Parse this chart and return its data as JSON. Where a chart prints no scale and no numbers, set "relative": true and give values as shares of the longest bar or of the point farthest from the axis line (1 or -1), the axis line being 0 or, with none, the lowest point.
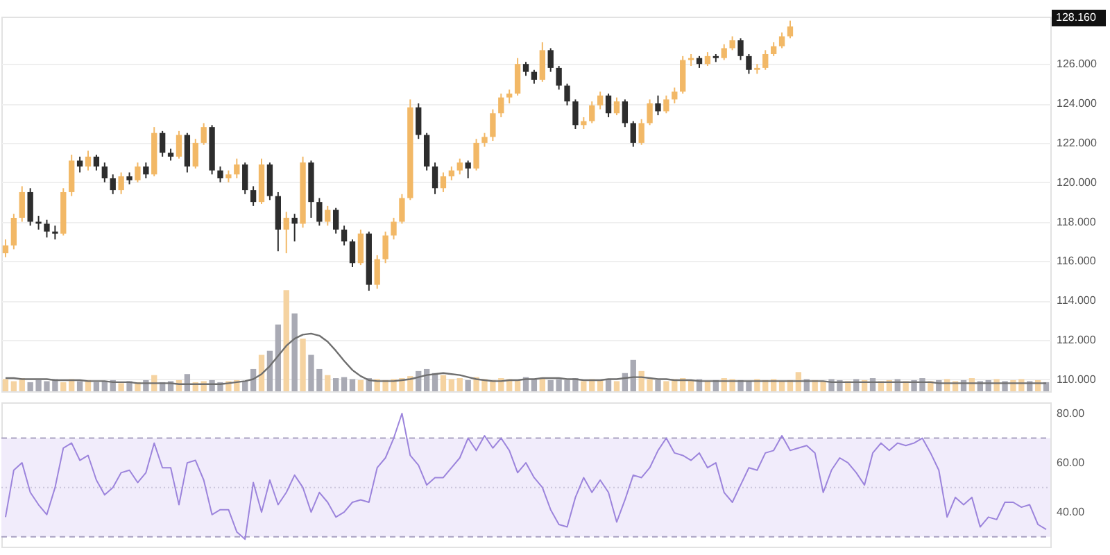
{
  "chart_data": [
    {
      "type": "candlestick",
      "tick_labels": "y",
      "grid": "y",
      "categories": [
        null,
        null,
        null,
        null,
        null,
        null,
        null,
        null,
        null,
        null,
        null,
        null,
        null,
        null,
        null,
        null,
        null,
        null,
        null,
        null,
        null,
        null,
        null,
        null,
        null,
        null,
        null,
        null,
        null,
        null,
        null,
        null,
        null,
        null,
        null,
        null,
        null,
        null,
        null,
        null,
        null,
        null,
        null,
        null,
        null,
        null,
        null,
        null,
        null,
        null,
        null,
        null,
        null,
        null,
        null,
        null,
        null,
        null,
        null,
        null,
        null,
        null,
        null,
        null,
        null,
        null,
        null,
        null,
        null,
        null,
        null,
        null,
        null,
        null,
        null,
        null,
        null,
        null,
        null,
        null,
        null,
        null,
        null,
        null,
        null,
        null,
        null,
        null,
        null,
        null,
        null,
        null,
        null,
        null,
        null,
        null,
        null,
        null,
        null,
        null,
        null,
        null,
        null,
        null,
        null,
        null,
        null,
        null,
        null,
        null,
        null,
        null,
        null,
        null,
        null,
        null,
        null,
        null,
        null,
        null,
        null,
        null,
        null,
        null,
        null,
        null,
        null
      ],
      "ohlc": [
        [
          116.4,
          117.1,
          116.2,
          116.8
        ],
        [
          116.8,
          118.4,
          116.6,
          118.2
        ],
        [
          118.2,
          119.8,
          118.0,
          119.5
        ],
        [
          119.5,
          119.7,
          117.8,
          118.0
        ],
        [
          118.0,
          118.3,
          117.6,
          117.9
        ],
        [
          117.9,
          118.1,
          117.2,
          117.5
        ],
        [
          117.5,
          117.8,
          117.1,
          117.4
        ],
        [
          117.4,
          119.7,
          117.3,
          119.5
        ],
        [
          119.5,
          121.4,
          119.3,
          121.1
        ],
        [
          121.1,
          121.3,
          120.5,
          120.8
        ],
        [
          120.8,
          121.6,
          120.6,
          121.3
        ],
        [
          121.3,
          121.4,
          120.6,
          120.8
        ],
        [
          120.8,
          121.0,
          120.0,
          120.2
        ],
        [
          120.2,
          120.4,
          119.4,
          119.6
        ],
        [
          119.6,
          120.5,
          119.4,
          120.3
        ],
        [
          120.3,
          120.5,
          119.9,
          120.1
        ],
        [
          120.1,
          121.0,
          120.0,
          120.8
        ],
        [
          120.8,
          121.0,
          120.2,
          120.4
        ],
        [
          120.4,
          122.8,
          120.3,
          122.5
        ],
        [
          122.5,
          122.6,
          121.3,
          121.5
        ],
        [
          121.5,
          121.7,
          121.1,
          121.3
        ],
        [
          121.3,
          122.6,
          121.2,
          122.4
        ],
        [
          122.4,
          122.5,
          120.5,
          120.8
        ],
        [
          120.8,
          122.2,
          120.7,
          122.0
        ],
        [
          122.0,
          123.0,
          121.9,
          122.8
        ],
        [
          122.8,
          122.9,
          120.4,
          120.6
        ],
        [
          120.6,
          120.8,
          120.0,
          120.2
        ],
        [
          120.2,
          120.6,
          120.0,
          120.4
        ],
        [
          120.4,
          121.2,
          120.2,
          120.9
        ],
        [
          120.9,
          121.0,
          119.4,
          119.6
        ],
        [
          119.6,
          119.8,
          118.8,
          119.0
        ],
        [
          119.0,
          121.2,
          118.9,
          120.9
        ],
        [
          120.9,
          121.0,
          119.1,
          119.3
        ],
        [
          119.3,
          119.5,
          116.5,
          117.6
        ],
        [
          117.6,
          118.5,
          116.4,
          118.2
        ],
        [
          118.2,
          118.4,
          117.0,
          117.9
        ],
        [
          117.9,
          121.3,
          117.7,
          121.0
        ],
        [
          121.0,
          121.1,
          118.2,
          119.0
        ],
        [
          119.0,
          119.2,
          117.8,
          118.0
        ],
        [
          118.0,
          118.8,
          117.8,
          118.6
        ],
        [
          118.6,
          118.7,
          117.4,
          117.6
        ],
        [
          117.6,
          117.8,
          116.8,
          117.0
        ],
        [
          117.0,
          117.1,
          115.7,
          115.9
        ],
        [
          115.9,
          117.6,
          115.8,
          117.4
        ],
        [
          117.4,
          117.5,
          114.5,
          114.8
        ],
        [
          114.8,
          116.3,
          114.6,
          116.1
        ],
        [
          116.1,
          117.5,
          115.9,
          117.3
        ],
        [
          117.3,
          118.2,
          117.1,
          118.0
        ],
        [
          118.0,
          119.4,
          117.9,
          119.2
        ],
        [
          119.2,
          124.2,
          119.1,
          123.8
        ],
        [
          123.8,
          124.0,
          122.2,
          122.4
        ],
        [
          122.4,
          122.5,
          120.6,
          120.8
        ],
        [
          120.8,
          121.0,
          119.4,
          119.7
        ],
        [
          119.7,
          120.5,
          119.5,
          120.3
        ],
        [
          120.3,
          120.8,
          120.1,
          120.6
        ],
        [
          120.6,
          121.2,
          120.4,
          121.0
        ],
        [
          121.0,
          121.1,
          120.2,
          120.7
        ],
        [
          120.7,
          122.2,
          120.6,
          122.0
        ],
        [
          122.0,
          122.5,
          121.8,
          122.3
        ],
        [
          122.3,
          123.7,
          122.1,
          123.5
        ],
        [
          123.5,
          124.5,
          123.3,
          124.3
        ],
        [
          124.3,
          124.7,
          124.0,
          124.5
        ],
        [
          124.5,
          126.3,
          124.4,
          126.0
        ],
        [
          126.0,
          126.1,
          125.4,
          125.6
        ],
        [
          125.6,
          125.7,
          125.0,
          125.2
        ],
        [
          125.2,
          127.1,
          125.1,
          126.7
        ],
        [
          126.7,
          126.8,
          125.6,
          125.8
        ],
        [
          125.8,
          125.9,
          124.7,
          124.9
        ],
        [
          124.9,
          125.0,
          123.9,
          124.1
        ],
        [
          124.1,
          124.2,
          122.7,
          122.9
        ],
        [
          122.9,
          123.3,
          122.7,
          123.1
        ],
        [
          123.1,
          124.1,
          123.0,
          123.9
        ],
        [
          123.9,
          124.6,
          123.7,
          124.4
        ],
        [
          124.4,
          124.5,
          123.3,
          123.5
        ],
        [
          123.5,
          124.3,
          123.4,
          124.1
        ],
        [
          124.1,
          124.2,
          122.8,
          123.0
        ],
        [
          123.0,
          123.1,
          121.8,
          122.0
        ],
        [
          122.0,
          123.2,
          121.9,
          123.0
        ],
        [
          123.0,
          124.2,
          122.9,
          124.0
        ],
        [
          124.0,
          124.4,
          123.4,
          123.6
        ],
        [
          123.6,
          124.4,
          123.5,
          124.2
        ],
        [
          124.2,
          124.8,
          124.0,
          124.6
        ],
        [
          124.6,
          126.4,
          124.5,
          126.2
        ],
        [
          126.2,
          126.5,
          125.9,
          126.3
        ],
        [
          126.3,
          126.4,
          125.8,
          126.0
        ],
        [
          126.0,
          126.6,
          125.9,
          126.4
        ],
        [
          126.4,
          126.5,
          126.1,
          126.3
        ],
        [
          126.3,
          127.0,
          126.2,
          126.8
        ],
        [
          126.8,
          127.4,
          126.7,
          127.2
        ],
        [
          127.2,
          127.3,
          126.2,
          126.4
        ],
        [
          126.4,
          126.5,
          125.5,
          125.7
        ],
        [
          125.7,
          126.0,
          125.5,
          125.8
        ],
        [
          125.8,
          126.7,
          125.7,
          126.5
        ],
        [
          126.5,
          127.1,
          126.4,
          126.9
        ],
        [
          126.9,
          127.6,
          126.8,
          127.4
        ],
        [
          127.4,
          128.2,
          127.3,
          127.9
        ],
        null,
        null,
        null,
        null,
        null,
        null,
        null,
        null,
        null,
        null,
        null,
        null,
        null,
        null,
        null,
        null,
        null,
        null,
        null,
        null,
        null,
        null,
        null,
        null,
        null,
        null,
        null,
        null,
        null,
        null,
        null
      ],
      "colors": [
        "#f2b866",
        "#f2b866",
        "#f2b866",
        "#2d2d2d",
        "#2d2d2d",
        "#2d2d2d",
        "#2d2d2d",
        "#f2b866",
        "#f2b866",
        "#2d2d2d",
        "#f2b866",
        "#2d2d2d",
        "#2d2d2d",
        "#2d2d2d",
        "#f2b866",
        "#2d2d2d",
        "#f2b866",
        "#2d2d2d",
        "#f2b866",
        "#2d2d2d",
        "#2d2d2d",
        "#f2b866",
        "#2d2d2d",
        "#f2b866",
        "#f2b866",
        "#2d2d2d",
        "#2d2d2d",
        "#f2b866",
        "#f2b866",
        "#2d2d2d",
        "#2d2d2d",
        "#f2b866",
        "#2d2d2d",
        "#2d2d2d",
        "#f2b866",
        "#2d2d2d",
        "#f2b866",
        "#2d2d2d",
        "#2d2d2d",
        "#f2b866",
        "#2d2d2d",
        "#2d2d2d",
        "#2d2d2d",
        "#f2b866",
        "#2d2d2d",
        "#f2b866",
        "#f2b866",
        "#f2b866",
        "#f2b866",
        "#f2b866",
        "#2d2d2d",
        "#2d2d2d",
        "#2d2d2d",
        "#f2b866",
        "#f2b866",
        "#f2b866",
        "#2d2d2d",
        "#f2b866",
        "#f2b866",
        "#f2b866",
        "#f2b866",
        "#f2b866",
        "#f2b866",
        "#2d2d2d",
        "#2d2d2d",
        "#f2b866",
        "#2d2d2d",
        "#2d2d2d",
        "#2d2d2d",
        "#2d2d2d",
        "#f2b866",
        "#f2b866",
        "#f2b866",
        "#2d2d2d",
        "#f2b866",
        "#2d2d2d",
        "#2d2d2d",
        "#f2b866",
        "#f2b866",
        "#2d2d2d",
        "#f2b866",
        "#f2b866",
        "#f2b866",
        "#f2b866",
        "#2d2d2d",
        "#f2b866",
        "#2d2d2d",
        "#f2b866",
        "#f2b866",
        "#2d2d2d",
        "#2d2d2d",
        "#f2b866",
        "#f2b866",
        "#f2b866",
        "#f2b866",
        "#f2b866",
        null,
        null,
        null,
        null,
        null,
        null,
        null,
        null,
        null,
        null,
        null,
        null,
        null,
        null,
        null,
        null,
        null,
        null,
        null,
        null,
        null,
        null,
        null,
        null,
        null,
        null,
        null,
        null,
        null,
        null,
        null
      ],
      "ylim": [
        109.4,
        128.4
      ],
      "yticks": [
        {
          "value": 110,
          "label": "110.000"
        },
        {
          "value": 112,
          "label": "112.000"
        },
        {
          "value": 114,
          "label": "114.000"
        },
        {
          "value": 116,
          "label": "116.000"
        },
        {
          "value": 118,
          "label": "118.000"
        },
        {
          "value": 120,
          "label": "120.000"
        },
        {
          "value": 122,
          "label": "122.000"
        },
        {
          "value": 124,
          "label": "124.000"
        },
        {
          "value": 126,
          "label": "126.000"
        }
      ],
      "annotations": [
        "128.160"
      ]
    },
    {
      "type": "bar",
      "relative": true,
      "tick_labels": false,
      "categories": [
        null,
        null,
        null,
        null,
        null,
        null,
        null,
        null,
        null,
        null,
        null,
        null,
        null,
        null,
        null,
        null,
        null,
        null,
        null,
        null,
        null,
        null,
        null,
        null,
        null,
        null,
        null,
        null,
        null,
        null,
        null,
        null,
        null,
        null,
        null,
        null,
        null,
        null,
        null,
        null,
        null,
        null,
        null,
        null,
        null,
        null,
        null,
        null,
        null,
        null,
        null,
        null,
        null,
        null,
        null,
        null,
        null,
        null,
        null,
        null,
        null,
        null,
        null,
        null,
        null,
        null,
        null,
        null,
        null,
        null,
        null,
        null,
        null,
        null,
        null,
        null,
        null,
        null,
        null,
        null,
        null,
        null,
        null,
        null,
        null,
        null,
        null,
        null,
        null,
        null,
        null,
        null,
        null,
        null,
        null,
        null,
        null,
        null,
        null,
        null,
        null,
        null,
        null,
        null,
        null,
        null,
        null,
        null,
        null,
        null,
        null,
        null,
        null,
        null,
        null,
        null,
        null,
        null,
        null,
        null,
        null,
        null,
        null,
        null,
        null,
        null,
        null
      ],
      "series": [
        {
          "type": "bar",
          "values": [
            0.12,
            0.1,
            0.13,
            0.09,
            0.11,
            0.1,
            0.12,
            0.09,
            0.12,
            0.1,
            0.11,
            0.09,
            0.1,
            0.11,
            0.08,
            0.1,
            0.09,
            0.11,
            0.16,
            0.09,
            0.1,
            0.11,
            0.17,
            0.09,
            0.1,
            0.11,
            0.09,
            0.1,
            0.11,
            0.1,
            0.22,
            0.36,
            0.4,
            0.66,
            1.0,
            0.77,
            0.52,
            0.36,
            0.22,
            0.16,
            0.13,
            0.14,
            0.12,
            0.11,
            0.13,
            0.12,
            0.11,
            0.12,
            0.13,
            0.15,
            0.2,
            0.22,
            0.18,
            0.16,
            0.12,
            0.13,
            0.11,
            0.14,
            0.12,
            0.11,
            0.13,
            0.12,
            0.11,
            0.14,
            0.12,
            0.13,
            0.11,
            0.12,
            0.11,
            0.13,
            0.1,
            0.12,
            0.11,
            0.12,
            0.1,
            0.18,
            0.31,
            0.2,
            0.12,
            0.11,
            0.1,
            0.12,
            0.13,
            0.11,
            0.12,
            0.1,
            0.11,
            0.13,
            0.12,
            0.11,
            0.1,
            0.12,
            0.11,
            0.12,
            0.1,
            0.11,
            0.19,
            0.12,
            0.11,
            0.1,
            0.12,
            0.11,
            0.1,
            0.12,
            0.11,
            0.13,
            0.1,
            0.11,
            0.12,
            0.1,
            0.11,
            0.13,
            0.1,
            0.11,
            0.12,
            0.1,
            0.11,
            0.13,
            0.1,
            0.11,
            0.12,
            0.1,
            0.11,
            0.12,
            0.1,
            0.11,
            0.09
          ],
          "colors": [
            "#f5d3a1",
            "#f5d3a1",
            "#f5d3a1",
            "#a9aab4",
            "#a9aab4",
            "#a9aab4",
            "#a9aab4",
            "#f5d3a1",
            "#f5d3a1",
            "#a9aab4",
            "#f5d3a1",
            "#a9aab4",
            "#a9aab4",
            "#a9aab4",
            "#f5d3a1",
            "#a9aab4",
            "#f5d3a1",
            "#a9aab4",
            "#f5d3a1",
            "#a9aab4",
            "#a9aab4",
            "#f5d3a1",
            "#a9aab4",
            "#f5d3a1",
            "#f5d3a1",
            "#a9aab4",
            "#a9aab4",
            "#f5d3a1",
            "#f5d3a1",
            "#a9aab4",
            "#a9aab4",
            "#f5d3a1",
            "#a9aab4",
            "#a9aab4",
            "#f5d3a1",
            "#a9aab4",
            "#f5d3a1",
            "#a9aab4",
            "#a9aab4",
            "#f5d3a1",
            "#a9aab4",
            "#a9aab4",
            "#a9aab4",
            "#f5d3a1",
            "#a9aab4",
            "#f5d3a1",
            "#f5d3a1",
            "#f5d3a1",
            "#f5d3a1",
            "#f5d3a1",
            "#a9aab4",
            "#a9aab4",
            "#a9aab4",
            "#f5d3a1",
            "#f5d3a1",
            "#f5d3a1",
            "#a9aab4",
            "#f5d3a1",
            "#f5d3a1",
            "#f5d3a1",
            "#f5d3a1",
            "#f5d3a1",
            "#f5d3a1",
            "#a9aab4",
            "#a9aab4",
            "#f5d3a1",
            "#a9aab4",
            "#a9aab4",
            "#a9aab4",
            "#a9aab4",
            "#f5d3a1",
            "#f5d3a1",
            "#f5d3a1",
            "#a9aab4",
            "#f5d3a1",
            "#a9aab4",
            "#a9aab4",
            "#f5d3a1",
            "#f5d3a1",
            "#a9aab4",
            "#f5d3a1",
            "#f5d3a1",
            "#f5d3a1",
            "#f5d3a1",
            "#a9aab4",
            "#f5d3a1",
            "#a9aab4",
            "#f5d3a1",
            "#f5d3a1",
            "#a9aab4",
            "#a9aab4",
            "#f5d3a1",
            "#f5d3a1",
            "#f5d3a1",
            "#f5d3a1",
            "#f5d3a1",
            "#f5d3a1",
            "#a9aab4",
            "#f5d3a1",
            "#f5d3a1",
            "#a9aab4",
            "#a9aab4",
            "#f5d3a1",
            "#a9aab4",
            "#f5d3a1",
            "#a9aab4",
            "#f5d3a1",
            "#f5d3a1",
            "#a9aab4",
            "#f5d3a1",
            "#a9aab4",
            "#a9aab4",
            "#f5d3a1",
            "#a9aab4",
            "#f5d3a1",
            "#f5d3a1",
            "#a9aab4",
            "#f5d3a1",
            "#a9aab4",
            "#a9aab4",
            "#f5d3a1",
            "#a9aab4",
            "#f5d3a1",
            "#f5d3a1",
            "#a9aab4",
            "#f5d3a1",
            "#a9aab4"
          ]
        },
        {
          "type": "line",
          "color": "#6f6f6f",
          "values": [
            0.13,
            0.13,
            0.12,
            0.12,
            0.12,
            0.12,
            0.11,
            0.11,
            0.11,
            0.11,
            0.1,
            0.1,
            0.1,
            0.09,
            0.09,
            0.09,
            0.08,
            0.08,
            0.08,
            0.08,
            0.08,
            0.07,
            0.07,
            0.07,
            0.07,
            0.07,
            0.07,
            0.08,
            0.09,
            0.1,
            0.12,
            0.17,
            0.25,
            0.35,
            0.45,
            0.52,
            0.56,
            0.57,
            0.55,
            0.49,
            0.4,
            0.3,
            0.21,
            0.15,
            0.11,
            0.1,
            0.1,
            0.1,
            0.11,
            0.12,
            0.14,
            0.16,
            0.17,
            0.18,
            0.17,
            0.16,
            0.14,
            0.12,
            0.11,
            0.1,
            0.1,
            0.11,
            0.11,
            0.12,
            0.12,
            0.13,
            0.13,
            0.13,
            0.12,
            0.12,
            0.11,
            0.11,
            0.11,
            0.12,
            0.12,
            0.13,
            0.14,
            0.14,
            0.13,
            0.12,
            0.12,
            0.11,
            0.11,
            0.11,
            0.1,
            0.1,
            0.1,
            0.1,
            0.1,
            0.1,
            0.1,
            0.1,
            0.1,
            0.1,
            0.1,
            0.1,
            0.1,
            0.1,
            0.1,
            0.1,
            0.09,
            0.09,
            0.09,
            0.09,
            0.09,
            0.09,
            0.09,
            0.09,
            0.09,
            0.09,
            0.09,
            0.09,
            0.09,
            0.08,
            0.08,
            0.08,
            0.08,
            0.08,
            0.08,
            0.08,
            0.08,
            0.08,
            0.08,
            0.08,
            0.08,
            0.08,
            0.08
          ]
        }
      ]
    },
    {
      "type": "line",
      "tick_labels": "y",
      "color": "#9c84dc",
      "categories": [
        null,
        null,
        null,
        null,
        null,
        null,
        null,
        null,
        null,
        null,
        null,
        null,
        null,
        null,
        null,
        null,
        null,
        null,
        null,
        null,
        null,
        null,
        null,
        null,
        null,
        null,
        null,
        null,
        null,
        null,
        null,
        null,
        null,
        null,
        null,
        null,
        null,
        null,
        null,
        null,
        null,
        null,
        null,
        null,
        null,
        null,
        null,
        null,
        null,
        null,
        null,
        null,
        null,
        null,
        null,
        null,
        null,
        null,
        null,
        null,
        null,
        null,
        null,
        null,
        null,
        null,
        null,
        null,
        null,
        null,
        null,
        null,
        null,
        null,
        null,
        null,
        null,
        null,
        null,
        null,
        null,
        null,
        null,
        null,
        null,
        null,
        null,
        null,
        null,
        null,
        null,
        null,
        null,
        null,
        null,
        null,
        null,
        null,
        null,
        null,
        null,
        null,
        null,
        null,
        null,
        null,
        null,
        null,
        null,
        null,
        null,
        null,
        null,
        null,
        null,
        null,
        null,
        null,
        null,
        null,
        null,
        null,
        null,
        null,
        null,
        null,
        null
      ],
      "values": [
        38,
        57,
        60,
        48,
        43,
        39,
        50,
        66,
        68,
        61,
        63,
        53,
        47,
        50,
        56,
        57,
        52,
        56,
        68,
        58,
        58,
        43,
        60,
        61,
        53,
        39,
        41,
        41,
        32,
        29,
        52,
        40,
        53,
        43,
        48,
        55,
        50,
        40,
        48,
        44,
        38,
        40,
        44,
        45,
        44,
        58,
        62,
        70,
        80,
        63,
        59,
        51,
        54,
        54,
        58,
        62,
        70,
        65,
        71,
        66,
        70,
        65,
        56,
        60,
        54,
        50,
        41,
        35,
        34,
        46,
        54,
        48,
        53,
        48,
        36,
        45,
        55,
        54,
        58,
        65,
        70,
        64,
        63,
        61,
        64,
        58,
        60,
        48,
        44,
        51,
        58,
        57,
        64,
        65,
        71,
        65,
        66,
        67,
        64,
        48,
        57,
        62,
        60,
        56,
        51,
        64,
        68,
        65,
        68,
        67,
        68,
        70,
        64,
        57,
        38,
        46,
        43,
        46,
        34,
        38,
        37,
        44,
        44,
        42,
        43,
        35,
        33
      ],
      "ylim": [
        26,
        84.5
      ],
      "yticks": [
        {
          "value": 40,
          "label": "40.00"
        },
        {
          "value": 60,
          "label": "60.00"
        },
        {
          "value": 80,
          "label": "80.00"
        }
      ],
      "bands": [
        {
          "axis": "y",
          "from": 30,
          "to": 70,
          "color": "#f1ecfb"
        }
      ],
      "ref_lines": [
        {
          "axis": "y",
          "value": 70,
          "line_style": "dashed",
          "color": "#a9a2c2"
        },
        {
          "axis": "y",
          "value": 50,
          "line_style": "dotted",
          "color": "#cbc5dc"
        },
        {
          "axis": "y",
          "value": 30,
          "line_style": "dashed",
          "color": "#a9a2c2"
        }
      ]
    }
  ]
}
